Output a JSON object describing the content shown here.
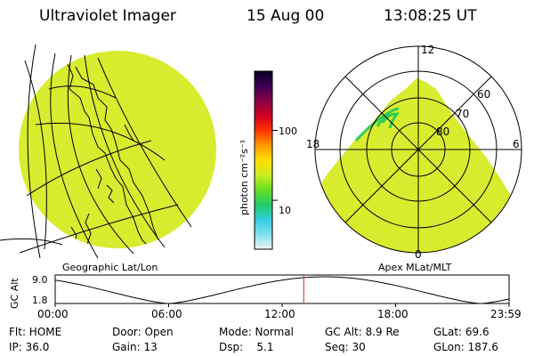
{
  "header": {
    "instrument": "Ultraviolet Imager",
    "date": "15 Aug 00",
    "time": "13:08:25 UT"
  },
  "colors": {
    "field": "#d8ec2a",
    "field_noise": "#a8dc3c",
    "aurora_edge": "#33cc55"
  },
  "colorbar": {
    "unit_label": "photon cm⁻²s⁻¹",
    "ticks": [
      {
        "value": 100,
        "label": "100"
      },
      {
        "value": 10,
        "label": "10"
      }
    ],
    "scale": "log",
    "stops": [
      "#f2f2f2",
      "#7fe0ee",
      "#33ccdd",
      "#22cc66",
      "#66dd22",
      "#ccee22",
      "#ffdd00",
      "#ff9900",
      "#ff3300",
      "#cc0022",
      "#880044",
      "#3a0055",
      "#0a0020"
    ]
  },
  "left_panel": {
    "caption": "Geographic Lat/Lon"
  },
  "right_panel": {
    "caption": "Apex MLat/MLT",
    "mlt_labels": {
      "top": "12",
      "left": "18",
      "right": "6",
      "bottom": "0"
    },
    "lat_labels": [
      {
        "value": 60,
        "label": "60"
      },
      {
        "value": 70,
        "label": "70"
      },
      {
        "value": 80,
        "label": "80"
      }
    ]
  },
  "altitude_plot": {
    "ylabel": "GC Alt",
    "y_ticks": [
      {
        "value": 9.0,
        "label": "9.0"
      },
      {
        "value": 1.8,
        "label": "1.8"
      }
    ],
    "x_ticks": [
      {
        "hour": 0,
        "label": "00:00"
      },
      {
        "hour": 6,
        "label": "06:00"
      },
      {
        "hour": 12,
        "label": "12:00"
      },
      {
        "hour": 18,
        "label": "18:00"
      },
      {
        "hour": 24,
        "label": "23:59"
      }
    ],
    "current_hour": 13.14,
    "marker_color": "#dd2222"
  },
  "info": {
    "row1": {
      "flt": "Flt: HOME",
      "door": "Door: Open",
      "mode": "Mode: Normal",
      "gcalt": "GC Alt: 8.9 Re",
      "glat": "GLat: 69.6"
    },
    "row2": {
      "ip": "IP: 36.0",
      "gain": "Gain: 13",
      "dsp": "Dsp:    5.1",
      "seq": "Seq: 30",
      "glon": "GLon: 187.6"
    }
  }
}
